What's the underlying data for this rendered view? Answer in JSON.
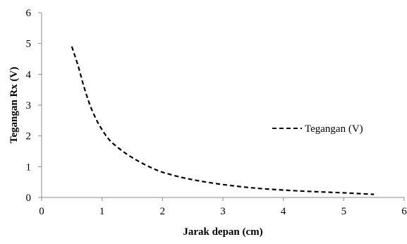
{
  "chart_data": {
    "type": "line",
    "title": "",
    "xlabel": "Jarak depan  (cm)",
    "ylabel": "Tegangan  Rx (V)",
    "xlim": [
      0,
      6
    ],
    "ylim": [
      0,
      6
    ],
    "x_ticks": [
      "0",
      "1",
      "2",
      "3",
      "4",
      "5",
      "6"
    ],
    "y_ticks": [
      "0",
      "1",
      "2",
      "3",
      "4",
      "5",
      "6"
    ],
    "grid": false,
    "legend_position": "right",
    "series": [
      {
        "name": "Tegangan (V)",
        "line_style": "dashed",
        "color": "#000000",
        "x": [
          0.5,
          0.6,
          0.7,
          0.8,
          0.9,
          1.0,
          1.1,
          1.2,
          1.4,
          1.6,
          1.8,
          2.0,
          2.3,
          2.6,
          3.0,
          3.5,
          4.0,
          4.5,
          5.0,
          5.5
        ],
        "y": [
          4.9,
          4.3,
          3.6,
          3.0,
          2.55,
          2.2,
          1.92,
          1.72,
          1.42,
          1.18,
          0.98,
          0.82,
          0.66,
          0.54,
          0.42,
          0.31,
          0.24,
          0.19,
          0.15,
          0.1
        ]
      }
    ]
  }
}
